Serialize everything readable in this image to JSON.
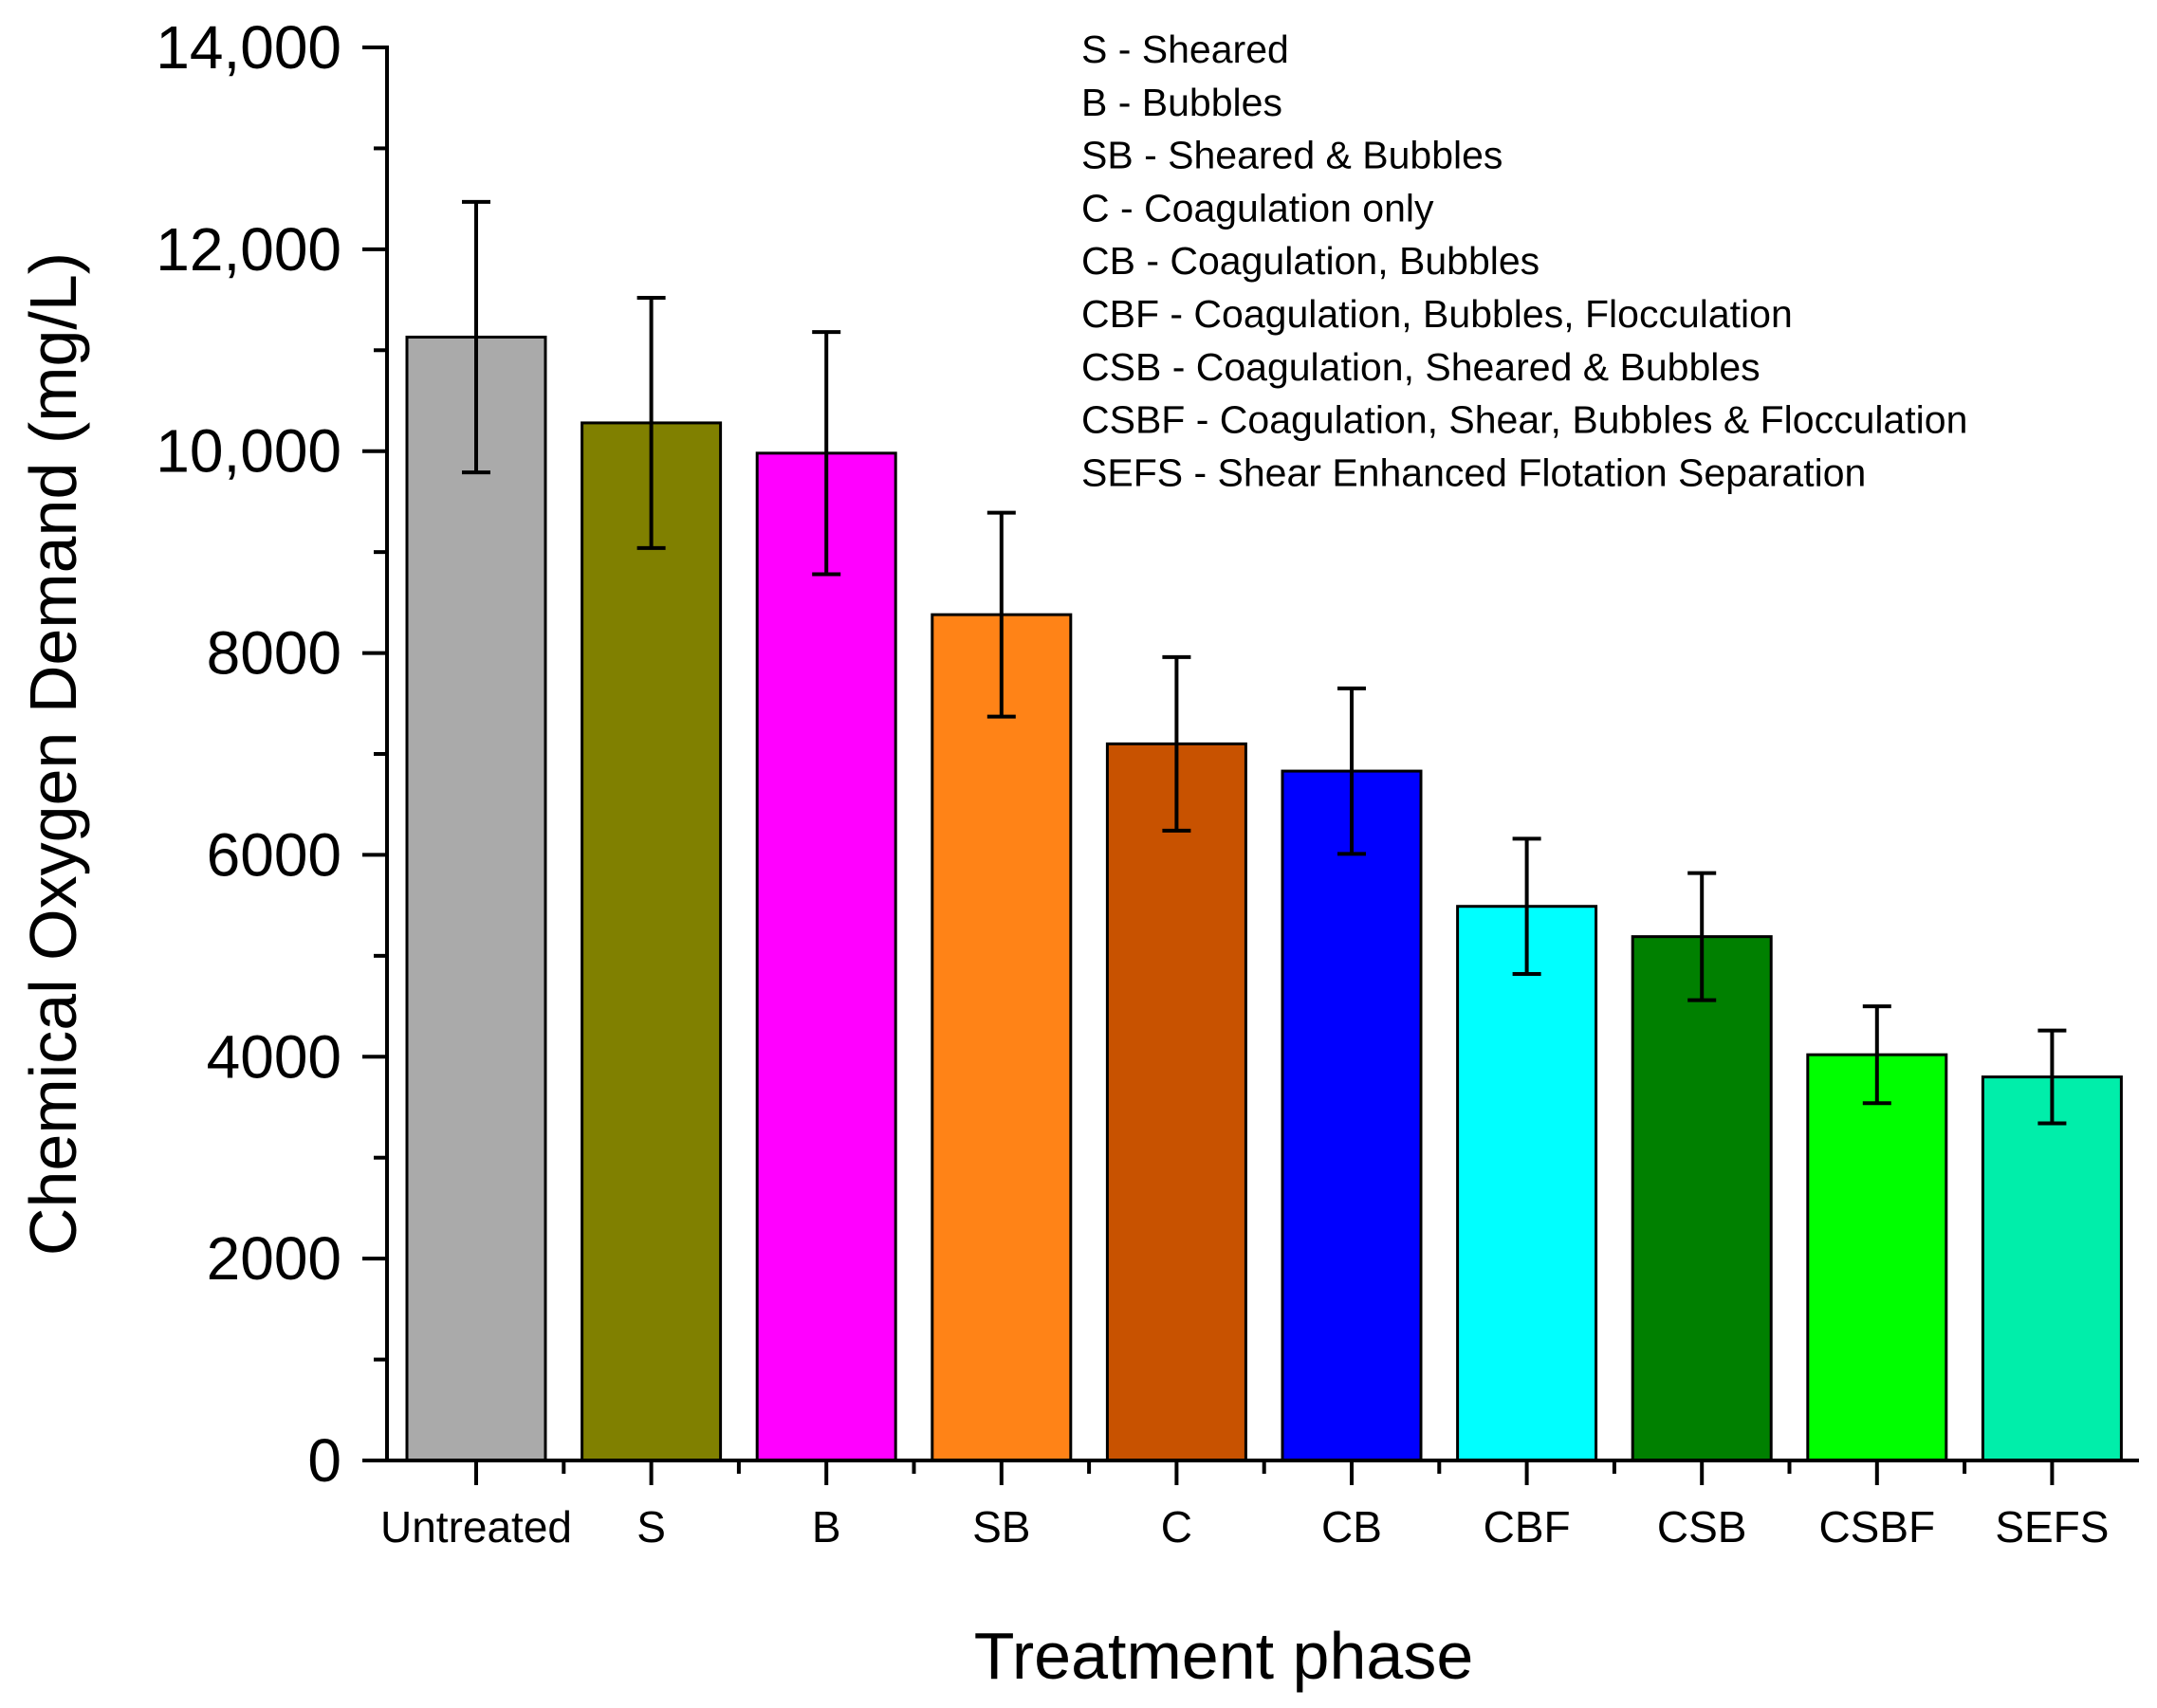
{
  "chart_data": {
    "type": "bar",
    "title": "",
    "xlabel": "Treatment phase",
    "ylabel": "Chemical Oxygen Demand (mg/L)",
    "ylim": [
      0,
      14000
    ],
    "yticks": [
      0,
      2000,
      4000,
      6000,
      8000,
      10000,
      12000,
      14000
    ],
    "ytick_labels": [
      "0",
      "2000",
      "4000",
      "6000",
      "8000",
      "10,000",
      "12,000",
      "14,000"
    ],
    "categories": [
      "Untreated",
      "S",
      "B",
      "SB",
      "C",
      "CB",
      "CBF",
      "CSB",
      "CSBF",
      "SEFS"
    ],
    "values": [
      11130,
      10280,
      9980,
      8380,
      7100,
      6830,
      5490,
      5190,
      4020,
      3800
    ],
    "errors": [
      1340,
      1240,
      1200,
      1010,
      860,
      820,
      670,
      630,
      480,
      460
    ],
    "colors": [
      "#aaaaaa",
      "#808000",
      "#ff00ff",
      "#ff8317",
      "#c85200",
      "#0000ff",
      "#00ffff",
      "#008000",
      "#00ff00",
      "#00eeaa"
    ],
    "grid": false,
    "legend": {
      "placement": "top-right",
      "entries": [
        "S - Sheared",
        "B - Bubbles",
        "SB - Sheared & Bubbles",
        "C - Coagulation only",
        "CB - Coagulation, Bubbles",
        "CBF - Coagulation, Bubbles, Flocculation",
        "CSB - Coagulation, Sheared & Bubbles",
        "CSBF - Coagulation, Shear, Bubbles & Flocculation",
        "SEFS - Shear Enhanced Flotation Separation"
      ]
    }
  }
}
